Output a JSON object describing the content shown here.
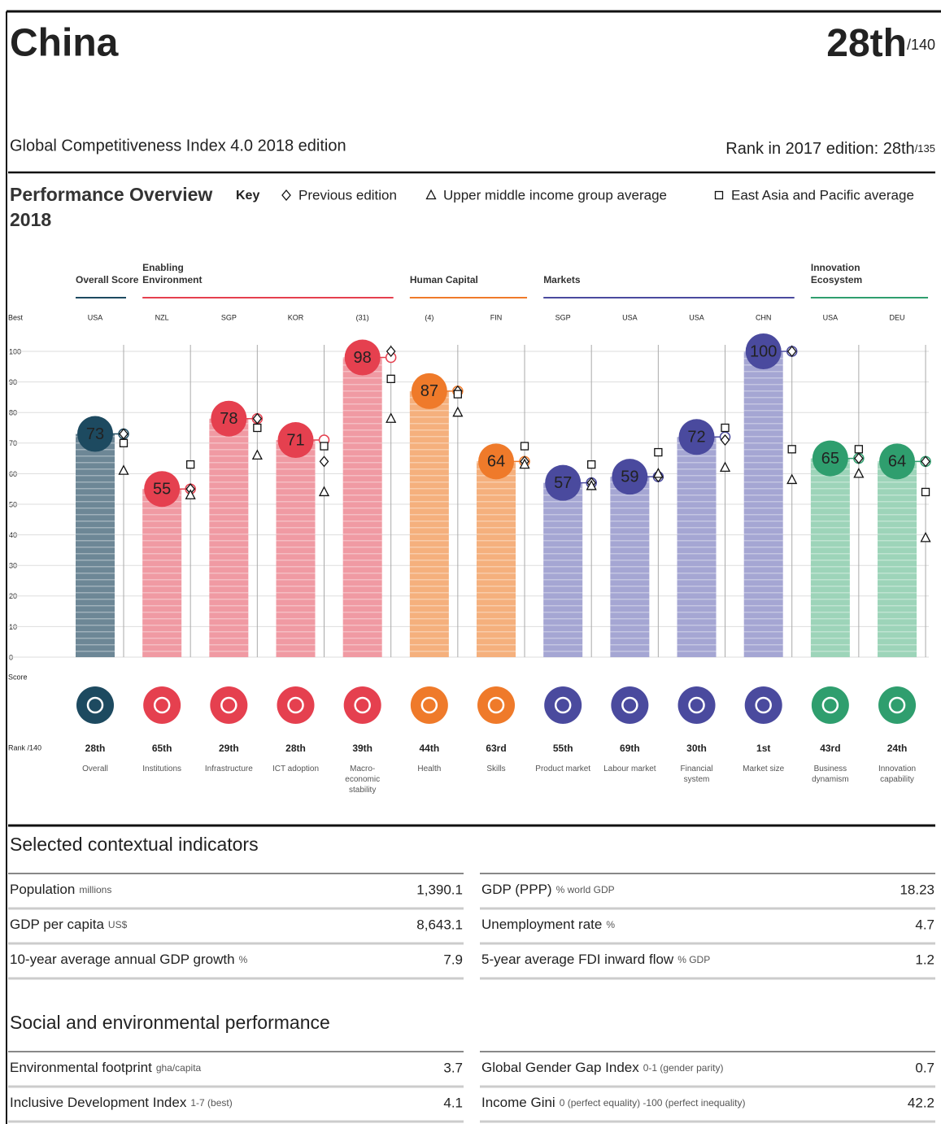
{
  "header": {
    "country": "China",
    "rank": "28th",
    "rank_total": "/140",
    "edition": "Global Competitiveness Index 4.0 2018 edition",
    "prev_rank_label": "Rank in 2017 edition: 28th",
    "prev_rank_total": "/135"
  },
  "chart_data": {
    "type": "bar",
    "title": "Performance Overview 2018",
    "key_label": "Key",
    "best_label": "Best",
    "rank_label": "Rank /140",
    "ylim": [
      0,
      100
    ],
    "yticks": [
      0,
      10,
      20,
      30,
      40,
      50,
      60,
      70,
      80,
      90,
      100
    ],
    "grid": true,
    "groups": [
      {
        "name": "Overall Score",
        "size": 1,
        "color": "#1d4a60",
        "bar_color": "#6d8796"
      },
      {
        "name": "Enabling Environment",
        "size": 4,
        "color": "#e5404f",
        "bar_color": "#f09aa3"
      },
      {
        "name": "Human Capital",
        "size": 2,
        "color": "#ef7a2a",
        "bar_color": "#f5b07d"
      },
      {
        "name": "Markets",
        "size": 4,
        "color": "#4a4a9e",
        "bar_color": "#a5a6d3"
      },
      {
        "name": "Innovation Ecosystem",
        "size": 2,
        "color": "#2f9e6e",
        "bar_color": "#9dd4b9"
      }
    ],
    "categories": [
      "Overall",
      "Institutions",
      "Infrastructure",
      "ICT adoption",
      "Macro-economic stability",
      "Health",
      "Skills",
      "Product market",
      "Labour market",
      "Financial system",
      "Market size",
      "Business dynamism",
      "Innovation capability"
    ],
    "best": [
      "USA",
      "NZL",
      "SGP",
      "KOR",
      "(31)",
      "(4)",
      "FIN",
      "SGP",
      "USA",
      "USA",
      "CHN",
      "USA",
      "DEU"
    ],
    "ranks": [
      "28th",
      "65th",
      "29th",
      "28th",
      "39th",
      "44th",
      "63rd",
      "55th",
      "69th",
      "30th",
      "1st",
      "43rd",
      "24th"
    ],
    "series": [
      {
        "name": "Score",
        "values": [
          73,
          55,
          78,
          71,
          98,
          87,
          64,
          57,
          59,
          72,
          100,
          65,
          64
        ]
      },
      {
        "name": "Previous edition",
        "marker": "diamond",
        "values": [
          73,
          55,
          78,
          64,
          100,
          87,
          64,
          57,
          59,
          71,
          100,
          65,
          64
        ]
      },
      {
        "name": "Upper middle income group average",
        "marker": "triangle",
        "values": [
          61,
          53,
          66,
          54,
          78,
          80,
          63,
          56,
          60,
          62,
          58,
          60,
          39
        ]
      },
      {
        "name": "East Asia and Pacific average",
        "marker": "square",
        "values": [
          70,
          63,
          75,
          69,
          91,
          86,
          69,
          63,
          67,
          75,
          68,
          68,
          54
        ]
      }
    ]
  },
  "contextual": {
    "title": "Selected contextual indicators",
    "left": [
      {
        "label": "Population",
        "unit": "millions",
        "value": "1,390.1"
      },
      {
        "label": "GDP per capita",
        "unit": "US$",
        "value": "8,643.1"
      },
      {
        "label": "10-year average annual GDP growth",
        "unit": "%",
        "value": "7.9"
      }
    ],
    "right": [
      {
        "label": "GDP (PPP)",
        "unit": "% world GDP",
        "value": "18.23"
      },
      {
        "label": "Unemployment rate",
        "unit": "%",
        "value": "4.7"
      },
      {
        "label": "5-year average FDI inward flow",
        "unit": "% GDP",
        "value": "1.2"
      }
    ]
  },
  "social": {
    "title": "Social and environmental performance",
    "left": [
      {
        "label": "Environmental footprint",
        "unit": "gha/capita",
        "value": "3.7"
      },
      {
        "label": "Inclusive Development Index",
        "unit": "1-7 (best)",
        "value": "4.1"
      }
    ],
    "right": [
      {
        "label": "Global Gender Gap Index",
        "unit": "0-1 (gender parity)",
        "value": "0.7"
      },
      {
        "label": "Income Gini",
        "unit": "0 (perfect equality) -100 (perfect inequality)",
        "value": "42.2"
      }
    ]
  }
}
